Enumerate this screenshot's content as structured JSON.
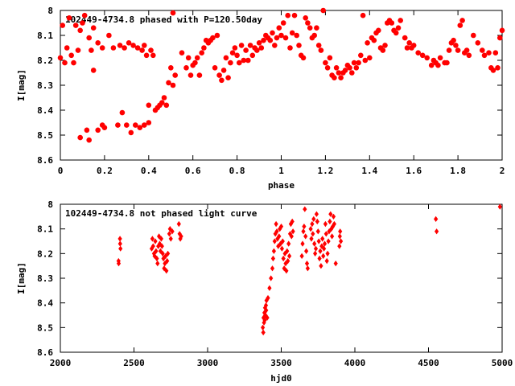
{
  "chart_data": [
    {
      "type": "scatter",
      "title": "102449-4734.8 phased with P=120.50day",
      "xlabel": "phase",
      "ylabel": "I[mag]",
      "xlim": [
        0,
        2
      ],
      "ylim": [
        8.6,
        8.0
      ],
      "y_inverted": true,
      "grid": false,
      "x_ticks": [
        "0",
        "0.2",
        "0.4",
        "0.6",
        "0.8",
        "1",
        "1.2",
        "1.4",
        "1.6",
        "1.8",
        "2"
      ],
      "y_ticks": [
        "8",
        "8.1",
        "8.2",
        "8.3",
        "8.4",
        "8.5",
        "8.6"
      ],
      "marker": "filled circle",
      "color": "#ff0000",
      "points": [
        [
          0.0,
          8.19
        ],
        [
          0.01,
          8.06
        ],
        [
          0.02,
          8.21
        ],
        [
          0.03,
          8.15
        ],
        [
          0.04,
          8.03
        ],
        [
          0.05,
          8.18
        ],
        [
          0.06,
          8.21
        ],
        [
          0.07,
          8.06
        ],
        [
          0.08,
          8.16
        ],
        [
          0.09,
          8.08
        ],
        [
          0.09,
          8.51
        ],
        [
          0.1,
          8.05
        ],
        [
          0.11,
          8.02
        ],
        [
          0.12,
          8.48
        ],
        [
          0.13,
          8.52
        ],
        [
          0.13,
          8.11
        ],
        [
          0.14,
          8.16
        ],
        [
          0.15,
          8.07
        ],
        [
          0.17,
          8.13
        ],
        [
          0.19,
          8.15
        ],
        [
          0.15,
          8.24
        ],
        [
          0.17,
          8.48
        ],
        [
          0.19,
          8.46
        ],
        [
          0.2,
          8.47
        ],
        [
          0.22,
          8.1
        ],
        [
          0.24,
          8.15
        ],
        [
          0.26,
          8.46
        ],
        [
          0.27,
          8.14
        ],
        [
          0.28,
          8.41
        ],
        [
          0.29,
          8.15
        ],
        [
          0.3,
          8.46
        ],
        [
          0.31,
          8.13
        ],
        [
          0.32,
          8.49
        ],
        [
          0.33,
          8.14
        ],
        [
          0.34,
          8.46
        ],
        [
          0.35,
          8.15
        ],
        [
          0.36,
          8.47
        ],
        [
          0.37,
          8.16
        ],
        [
          0.38,
          8.46
        ],
        [
          0.38,
          8.14
        ],
        [
          0.39,
          8.18
        ],
        [
          0.4,
          8.45
        ],
        [
          0.41,
          8.16
        ],
        [
          0.42,
          8.18
        ],
        [
          0.4,
          8.38
        ],
        [
          0.43,
          8.4
        ],
        [
          0.44,
          8.39
        ],
        [
          0.45,
          8.38
        ],
        [
          0.46,
          8.37
        ],
        [
          0.47,
          8.35
        ],
        [
          0.48,
          8.38
        ],
        [
          0.49,
          8.29
        ],
        [
          0.5,
          8.23
        ],
        [
          0.51,
          8.3
        ],
        [
          0.52,
          8.26
        ],
        [
          0.51,
          8.01
        ],
        [
          0.55,
          8.17
        ],
        [
          0.57,
          8.23
        ],
        [
          0.58,
          8.19
        ],
        [
          0.59,
          8.26
        ],
        [
          0.6,
          8.22
        ],
        [
          0.61,
          8.21
        ],
        [
          0.62,
          8.19
        ],
        [
          0.63,
          8.26
        ],
        [
          0.64,
          8.17
        ],
        [
          0.65,
          8.15
        ],
        [
          0.66,
          8.12
        ],
        [
          0.67,
          8.13
        ],
        [
          0.68,
          8.12
        ],
        [
          0.69,
          8.11
        ],
        [
          0.7,
          8.23
        ],
        [
          0.71,
          8.1
        ],
        [
          0.72,
          8.26
        ],
        [
          0.73,
          8.28
        ],
        [
          0.74,
          8.24
        ],
        [
          0.75,
          8.19
        ],
        [
          0.76,
          8.27
        ],
        [
          0.77,
          8.21
        ],
        [
          0.78,
          8.17
        ],
        [
          0.79,
          8.15
        ],
        [
          0.8,
          8.18
        ],
        [
          0.81,
          8.21
        ],
        [
          0.82,
          8.14
        ],
        [
          0.83,
          8.2
        ],
        [
          0.84,
          8.16
        ],
        [
          0.85,
          8.2
        ],
        [
          0.86,
          8.14
        ],
        [
          0.87,
          8.18
        ],
        [
          0.88,
          8.15
        ],
        [
          0.89,
          8.16
        ],
        [
          0.9,
          8.13
        ],
        [
          0.91,
          8.15
        ],
        [
          0.92,
          8.12
        ],
        [
          0.93,
          8.1
        ],
        [
          0.94,
          8.11
        ],
        [
          0.95,
          8.12
        ],
        [
          0.96,
          8.09
        ],
        [
          0.97,
          8.14
        ],
        [
          0.98,
          8.11
        ],
        [
          0.99,
          8.07
        ],
        [
          1.0,
          8.1
        ],
        [
          1.01,
          8.05
        ],
        [
          1.02,
          8.11
        ],
        [
          1.03,
          8.02
        ],
        [
          1.04,
          8.15
        ],
        [
          1.05,
          8.09
        ],
        [
          1.06,
          8.02
        ],
        [
          1.07,
          8.1
        ],
        [
          1.08,
          8.14
        ],
        [
          1.09,
          8.18
        ],
        [
          1.1,
          8.19
        ],
        [
          1.11,
          8.03
        ],
        [
          1.12,
          8.05
        ],
        [
          1.13,
          8.07
        ],
        [
          1.14,
          8.11
        ],
        [
          1.15,
          8.1
        ],
        [
          1.16,
          8.07
        ],
        [
          1.17,
          8.14
        ],
        [
          1.18,
          8.16
        ],
        [
          1.19,
          8.0
        ],
        [
          1.2,
          8.21
        ],
        [
          1.21,
          8.23
        ],
        [
          1.22,
          8.19
        ],
        [
          1.23,
          8.26
        ],
        [
          1.24,
          8.27
        ],
        [
          1.25,
          8.23
        ],
        [
          1.26,
          8.25
        ],
        [
          1.27,
          8.27
        ],
        [
          1.28,
          8.25
        ],
        [
          1.29,
          8.24
        ],
        [
          1.3,
          8.22
        ],
        [
          1.31,
          8.23
        ],
        [
          1.32,
          8.25
        ],
        [
          1.33,
          8.21
        ],
        [
          1.34,
          8.23
        ],
        [
          1.35,
          8.21
        ],
        [
          1.36,
          8.18
        ],
        [
          1.37,
          8.02
        ],
        [
          1.38,
          8.2
        ],
        [
          1.39,
          8.13
        ],
        [
          1.4,
          8.19
        ],
        [
          1.41,
          8.11
        ],
        [
          1.42,
          8.12
        ],
        [
          1.43,
          8.09
        ],
        [
          1.44,
          8.08
        ],
        [
          1.45,
          8.15
        ],
        [
          1.46,
          8.16
        ],
        [
          1.47,
          8.14
        ],
        [
          1.48,
          8.05
        ],
        [
          1.49,
          8.04
        ],
        [
          1.5,
          8.05
        ],
        [
          1.51,
          8.08
        ],
        [
          1.52,
          8.09
        ],
        [
          1.53,
          8.07
        ],
        [
          1.54,
          8.04
        ],
        [
          1.56,
          8.11
        ],
        [
          1.57,
          8.15
        ],
        [
          1.58,
          8.13
        ],
        [
          1.59,
          8.15
        ],
        [
          1.6,
          8.14
        ],
        [
          1.62,
          8.17
        ],
        [
          1.64,
          8.18
        ],
        [
          1.66,
          8.19
        ],
        [
          1.68,
          8.22
        ],
        [
          1.69,
          8.2
        ],
        [
          1.7,
          8.21
        ],
        [
          1.71,
          8.22
        ],
        [
          1.72,
          8.19
        ],
        [
          1.74,
          8.21
        ],
        [
          1.75,
          8.21
        ],
        [
          1.76,
          8.16
        ],
        [
          1.77,
          8.13
        ],
        [
          1.78,
          8.12
        ],
        [
          1.79,
          8.14
        ],
        [
          1.8,
          8.16
        ],
        [
          1.81,
          8.06
        ],
        [
          1.82,
          8.04
        ],
        [
          1.83,
          8.17
        ],
        [
          1.84,
          8.16
        ],
        [
          1.85,
          8.18
        ],
        [
          1.87,
          8.1
        ],
        [
          1.89,
          8.13
        ],
        [
          1.91,
          8.16
        ],
        [
          1.92,
          8.18
        ],
        [
          1.94,
          8.17
        ],
        [
          1.95,
          8.23
        ],
        [
          1.96,
          8.24
        ],
        [
          1.97,
          8.17
        ],
        [
          1.98,
          8.23
        ],
        [
          1.99,
          8.11
        ],
        [
          2.0,
          8.08
        ]
      ]
    },
    {
      "type": "scatter",
      "title": "102449-4734.8 not phased light curve",
      "xlabel": "hjd0",
      "ylabel": "I[mag]",
      "xlim": [
        2000,
        5000
      ],
      "ylim": [
        8.6,
        8.0
      ],
      "y_inverted": true,
      "grid": false,
      "x_ticks": [
        "2000",
        "2500",
        "3000",
        "3500",
        "4000",
        "4500",
        "5000"
      ],
      "y_ticks": [
        "8",
        "8.1",
        "8.2",
        "8.3",
        "8.4",
        "8.5",
        "8.6"
      ],
      "marker": "small filled diamond",
      "color": "#ff0000",
      "points": [
        [
          2395,
          8.23
        ],
        [
          2396,
          8.24
        ],
        [
          2405,
          8.14
        ],
        [
          2406,
          8.16
        ],
        [
          2408,
          8.18
        ],
        [
          2620,
          8.18
        ],
        [
          2625,
          8.14
        ],
        [
          2630,
          8.17
        ],
        [
          2636,
          8.2
        ],
        [
          2640,
          8.21
        ],
        [
          2645,
          8.15
        ],
        [
          2650,
          8.19
        ],
        [
          2655,
          8.22
        ],
        [
          2660,
          8.24
        ],
        [
          2665,
          8.17
        ],
        [
          2670,
          8.13
        ],
        [
          2675,
          8.16
        ],
        [
          2680,
          8.19
        ],
        [
          2685,
          8.14
        ],
        [
          2690,
          8.17
        ],
        [
          2695,
          8.2
        ],
        [
          2700,
          8.22
        ],
        [
          2705,
          8.26
        ],
        [
          2710,
          8.24
        ],
        [
          2715,
          8.21
        ],
        [
          2720,
          8.27
        ],
        [
          2725,
          8.23
        ],
        [
          2730,
          8.2
        ],
        [
          2740,
          8.12
        ],
        [
          2745,
          8.1
        ],
        [
          2750,
          8.14
        ],
        [
          2760,
          8.11
        ],
        [
          2805,
          8.08
        ],
        [
          2810,
          8.12
        ],
        [
          2815,
          8.14
        ],
        [
          2820,
          8.13
        ],
        [
          3375,
          8.5
        ],
        [
          3378,
          8.52
        ],
        [
          3380,
          8.46
        ],
        [
          3383,
          8.48
        ],
        [
          3386,
          8.44
        ],
        [
          3388,
          8.47
        ],
        [
          3390,
          8.42
        ],
        [
          3393,
          8.45
        ],
        [
          3396,
          8.41
        ],
        [
          3398,
          8.43
        ],
        [
          3400,
          8.39
        ],
        [
          3405,
          8.46
        ],
        [
          3410,
          8.38
        ],
        [
          3420,
          8.34
        ],
        [
          3430,
          8.3
        ],
        [
          3440,
          8.26
        ],
        [
          3445,
          8.22
        ],
        [
          3450,
          8.19
        ],
        [
          3455,
          8.15
        ],
        [
          3460,
          8.12
        ],
        [
          3465,
          8.08
        ],
        [
          3470,
          8.11
        ],
        [
          3475,
          8.14
        ],
        [
          3480,
          8.17
        ],
        [
          3485,
          8.13
        ],
        [
          3490,
          8.1
        ],
        [
          3495,
          8.16
        ],
        [
          3500,
          8.09
        ],
        [
          3505,
          8.18
        ],
        [
          3510,
          8.15
        ],
        [
          3515,
          8.22
        ],
        [
          3520,
          8.26
        ],
        [
          3525,
          8.2
        ],
        [
          3530,
          8.24
        ],
        [
          3535,
          8.27
        ],
        [
          3540,
          8.19
        ],
        [
          3545,
          8.23
        ],
        [
          3550,
          8.16
        ],
        [
          3555,
          8.21
        ],
        [
          3560,
          8.12
        ],
        [
          3565,
          8.08
        ],
        [
          3570,
          8.13
        ],
        [
          3575,
          8.07
        ],
        [
          3580,
          8.11
        ],
        [
          3640,
          8.21
        ],
        [
          3645,
          8.16
        ],
        [
          3650,
          8.11
        ],
        [
          3655,
          8.09
        ],
        [
          3660,
          8.02
        ],
        [
          3665,
          8.13
        ],
        [
          3670,
          8.19
        ],
        [
          3675,
          8.24
        ],
        [
          3680,
          8.26
        ],
        [
          3700,
          8.1
        ],
        [
          3705,
          8.14
        ],
        [
          3710,
          8.08
        ],
        [
          3715,
          8.12
        ],
        [
          3720,
          8.06
        ],
        [
          3725,
          8.16
        ],
        [
          3730,
          8.2
        ],
        [
          3735,
          8.18
        ],
        [
          3740,
          8.04
        ],
        [
          3745,
          8.07
        ],
        [
          3750,
          8.11
        ],
        [
          3755,
          8.15
        ],
        [
          3760,
          8.22
        ],
        [
          3765,
          8.19
        ],
        [
          3770,
          8.25
        ],
        [
          3775,
          8.17
        ],
        [
          3780,
          8.14
        ],
        [
          3785,
          8.21
        ],
        [
          3790,
          8.18
        ],
        [
          3795,
          8.16
        ],
        [
          3800,
          8.08
        ],
        [
          3805,
          8.12
        ],
        [
          3810,
          8.23
        ],
        [
          3815,
          8.2
        ],
        [
          3820,
          8.15
        ],
        [
          3825,
          8.11
        ],
        [
          3830,
          8.07
        ],
        [
          3835,
          8.04
        ],
        [
          3840,
          8.1
        ],
        [
          3845,
          8.13
        ],
        [
          3850,
          8.09
        ],
        [
          3855,
          8.05
        ],
        [
          3860,
          8.08
        ],
        [
          3870,
          8.24
        ],
        [
          3895,
          8.17
        ],
        [
          3898,
          8.13
        ],
        [
          3900,
          8.11
        ],
        [
          3905,
          8.15
        ],
        [
          4550,
          8.06
        ],
        [
          4555,
          8.11
        ],
        [
          4985,
          8.01
        ]
      ]
    }
  ]
}
